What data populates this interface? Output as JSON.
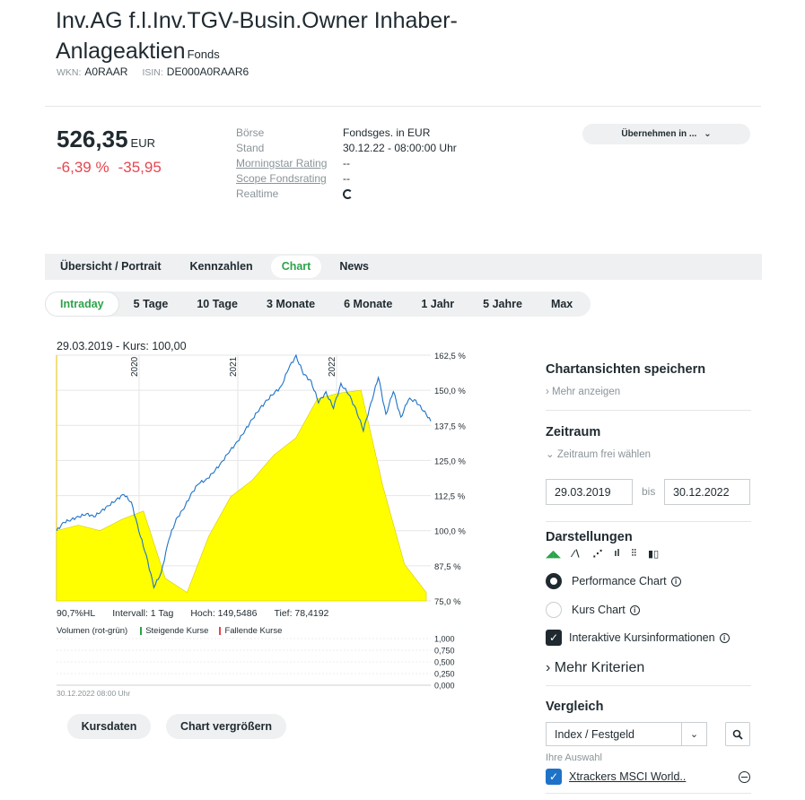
{
  "header": {
    "title": "Inv.AG f.l.Inv.TGV-Busin.Owner Inhaber-Anlageaktien",
    "type": "Fonds",
    "wkn_label": "WKN:",
    "wkn": "A0RAAR",
    "isin_label": "ISIN:",
    "isin": "DE000A0RAAR6"
  },
  "quote": {
    "price": "526,35",
    "currency": "EUR",
    "change_pct": "-6,39 %",
    "change_abs": "-35,95",
    "colors": {
      "negative": "#e8454f",
      "accent": "#2da34b"
    }
  },
  "details": [
    {
      "key": "Börse",
      "value": "Fondsges. in EUR",
      "link": false
    },
    {
      "key": "Stand",
      "value": "30.12.22 - 08:00:00 Uhr",
      "link": false
    },
    {
      "key": "Morningstar Rating",
      "value": "--",
      "link": true
    },
    {
      "key": "Scope Fondsrating",
      "value": "--",
      "link": true
    },
    {
      "key": "Realtime",
      "value": "",
      "link": false,
      "icon": "refresh-icon"
    }
  ],
  "take_button": "Übernehmen in ...",
  "tabs": [
    "Übersicht / Portrait",
    "Kennzahlen",
    "Chart",
    "News"
  ],
  "active_tab": 2,
  "periods": [
    "Intraday",
    "5 Tage",
    "10 Tage",
    "3 Monate",
    "6 Monate",
    "1 Jahr",
    "5 Jahre",
    "Max"
  ],
  "active_period": 0,
  "chart_header": "29.03.2019  -  Kurs: 100,00",
  "chart_data": {
    "type": "line",
    "x_range": [
      "2019-03-29",
      "2022-12-30"
    ],
    "year_markers": [
      "2020",
      "2021",
      "2022"
    ],
    "y_ticks": [
      "162,5 %",
      "150,0 %",
      "137,5 %",
      "125,0 %",
      "112,5 %",
      "100,0 %",
      "87,5 %",
      "75,0 %"
    ],
    "ylim": [
      75,
      162.5
    ],
    "series": [
      {
        "type": "line",
        "color": "#1e73c8",
        "values": [
          100,
          103,
          104,
          105,
          106,
          105,
          107,
          109,
          111,
          113,
          110,
          100,
          91,
          80,
          85,
          97,
          104,
          108,
          113,
          117,
          118,
          121,
          124,
          128,
          131,
          135,
          139,
          143,
          146,
          149,
          151,
          158,
          162,
          156,
          153,
          146,
          149,
          144,
          152,
          149,
          143,
          136,
          145,
          155,
          141,
          150,
          140,
          147,
          146,
          143,
          139
        ]
      },
      {
        "type": "area",
        "color": "#ffff00",
        "values": [
          100,
          102,
          100,
          104,
          107,
          83,
          78,
          98,
          112,
          118,
          127,
          133,
          147,
          149,
          150,
          116,
          88,
          78
        ]
      }
    ],
    "volume_ticks": [
      "1,000",
      "0,750",
      "0,500",
      "0,250",
      "0,000"
    ],
    "grid": true
  },
  "chart_stats": {
    "hl": "90,7%HL",
    "interval": "Intervall: 1 Tag",
    "high": "Hoch: 149,5486",
    "low": "Tief: 78,4192"
  },
  "volume_legend": {
    "label": "Volumen (rot-grün)",
    "rising": "Steigende Kurse",
    "falling": "Fallende Kurse"
  },
  "chart_date_footer": "30.12.2022 08:00 Uhr",
  "buttons": {
    "kursdaten": "Kursdaten",
    "enlarge": "Chart vergrößern"
  },
  "sidebar": {
    "save_title": "Chartansichten speichern",
    "show_more": "Mehr anzeigen",
    "period_title": "Zeitraum",
    "period_free": "Zeitraum frei wählen",
    "from": "29.03.2019",
    "bis": "bis",
    "to": "30.12.2022",
    "display_title": "Darstellungen",
    "performance": "Performance Chart",
    "kurs": "Kurs Chart",
    "interactive": "Interaktive Kursinformationen",
    "more_criteria": "Mehr Kriterien",
    "compare_title": "Vergleich",
    "compare_select": "Index / Festgeld",
    "your_selection": "Ihre Auswahl",
    "selection_item": "Xtrackers MSCI World.."
  }
}
